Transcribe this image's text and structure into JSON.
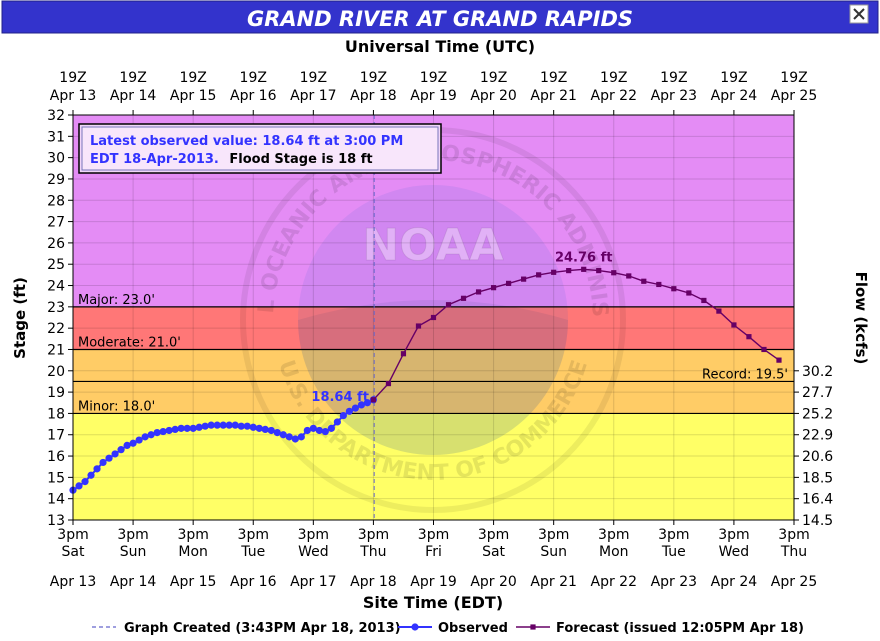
{
  "chart_data": {
    "type": "line",
    "title": "GRAND RIVER AT GRAND RAPIDS",
    "top_axis_label": "Universal Time (UTC)",
    "top_ticks": [
      {
        "line1": "19Z",
        "line2": "Apr 13"
      },
      {
        "line1": "19Z",
        "line2": "Apr 14"
      },
      {
        "line1": "19Z",
        "line2": "Apr 15"
      },
      {
        "line1": "19Z",
        "line2": "Apr 16"
      },
      {
        "line1": "19Z",
        "line2": "Apr 17"
      },
      {
        "line1": "19Z",
        "line2": "Apr 18"
      },
      {
        "line1": "19Z",
        "line2": "Apr 19"
      },
      {
        "line1": "19Z",
        "line2": "Apr 20"
      },
      {
        "line1": "19Z",
        "line2": "Apr 21"
      },
      {
        "line1": "19Z",
        "line2": "Apr 22"
      },
      {
        "line1": "19Z",
        "line2": "Apr 23"
      },
      {
        "line1": "19Z",
        "line2": "Apr 24"
      },
      {
        "line1": "19Z",
        "line2": "Apr 25"
      }
    ],
    "bottom_axis_label": "Site Time (EDT)",
    "bottom_ticks": [
      {
        "line1": "3pm",
        "line2": "Sat",
        "line3": "Apr 13"
      },
      {
        "line1": "3pm",
        "line2": "Sun",
        "line3": "Apr 14"
      },
      {
        "line1": "3pm",
        "line2": "Mon",
        "line3": "Apr 15"
      },
      {
        "line1": "3pm",
        "line2": "Tue",
        "line3": "Apr 16"
      },
      {
        "line1": "3pm",
        "line2": "Wed",
        "line3": "Apr 17"
      },
      {
        "line1": "3pm",
        "line2": "Thu",
        "line3": "Apr 18"
      },
      {
        "line1": "3pm",
        "line2": "Fri",
        "line3": "Apr 19"
      },
      {
        "line1": "3pm",
        "line2": "Sat",
        "line3": "Apr 20"
      },
      {
        "line1": "3pm",
        "line2": "Sun",
        "line3": "Apr 21"
      },
      {
        "line1": "3pm",
        "line2": "Mon",
        "line3": "Apr 22"
      },
      {
        "line1": "3pm",
        "line2": "Tue",
        "line3": "Apr 23"
      },
      {
        "line1": "3pm",
        "line2": "Wed",
        "line3": "Apr 24"
      },
      {
        "line1": "3pm",
        "line2": "Thu",
        "line3": "Apr 25"
      }
    ],
    "ylabel_left": "Stage (ft)",
    "ylim": [
      13,
      32
    ],
    "yticks_left": [
      13,
      14,
      15,
      16,
      17,
      18,
      19,
      20,
      21,
      22,
      23,
      24,
      25,
      26,
      27,
      28,
      29,
      30,
      31,
      32
    ],
    "ylabel_right": "Flow (kcfs)",
    "right_ticks": [
      {
        "stage": 13,
        "label": "14.5"
      },
      {
        "stage": 14,
        "label": "16.4"
      },
      {
        "stage": 15,
        "label": "18.5"
      },
      {
        "stage": 16,
        "label": "20.6"
      },
      {
        "stage": 17,
        "label": "22.9"
      },
      {
        "stage": 18,
        "label": "25.2"
      },
      {
        "stage": 19,
        "label": "27.7"
      },
      {
        "stage": 20,
        "label": "30.2"
      }
    ],
    "xlim_days": [
      0,
      12
    ],
    "bands": [
      {
        "from": 13,
        "to": 18,
        "color": "#ffff66"
      },
      {
        "from": 18,
        "to": 21,
        "color": "#ffcc66"
      },
      {
        "from": 21,
        "to": 23,
        "color": "#ff7777"
      },
      {
        "from": 23,
        "to": 32,
        "color": "#e48cf5"
      }
    ],
    "thresholds": [
      {
        "value": 23.0,
        "label": "Major: 23.0'",
        "side": "left"
      },
      {
        "value": 21.0,
        "label": "Moderate: 21.0'",
        "side": "left"
      },
      {
        "value": 18.0,
        "label": "Minor: 18.0'",
        "side": "left"
      },
      {
        "value": 19.5,
        "label": "Record: 19.5'",
        "side": "right"
      }
    ],
    "created_day": 5.0125,
    "info_box": {
      "observed_text": "Latest observed value: 18.64 ft at 3:00 PM EDT 18-Apr-2013.",
      "flood_text": "Flood Stage is 18 ft",
      "line1": "Latest observed value: 18.64 ft at 3:00 PM",
      "line2_blue": "EDT 18-Apr-2013.",
      "line2_black": "Flood Stage is 18 ft"
    },
    "observed_label": "18.64 ft",
    "crest_label": "24.76 ft",
    "watermark": "NATIONAL OCEANIC AND ATMOSPHERIC ADMINISTRATION",
    "watermark2": "U.S. DEPARTMENT OF COMMERCE",
    "watermark_logo": "NOAA",
    "colors": {
      "observed": "#3333ff",
      "forecast": "#660066",
      "title_bg": "#3333cc",
      "title_fg": "#ffffff",
      "frame": "#000000"
    },
    "series": [
      {
        "name": "Observed",
        "x": [
          0.0,
          0.1,
          0.2,
          0.3,
          0.4,
          0.5,
          0.6,
          0.7,
          0.8,
          0.9,
          1.0,
          1.1,
          1.2,
          1.3,
          1.4,
          1.5,
          1.6,
          1.7,
          1.8,
          1.9,
          2.0,
          2.1,
          2.2,
          2.3,
          2.4,
          2.5,
          2.6,
          2.7,
          2.8,
          2.9,
          3.0,
          3.1,
          3.2,
          3.3,
          3.4,
          3.5,
          3.6,
          3.7,
          3.8,
          3.9,
          4.0,
          4.1,
          4.2,
          4.3,
          4.4,
          4.5,
          4.6,
          4.7,
          4.8,
          4.9,
          5.0
        ],
        "values": [
          14.4,
          14.6,
          14.8,
          15.1,
          15.4,
          15.7,
          15.9,
          16.1,
          16.3,
          16.5,
          16.6,
          16.75,
          16.9,
          17.0,
          17.1,
          17.15,
          17.2,
          17.25,
          17.3,
          17.3,
          17.3,
          17.35,
          17.4,
          17.45,
          17.45,
          17.45,
          17.45,
          17.45,
          17.4,
          17.4,
          17.35,
          17.3,
          17.25,
          17.2,
          17.1,
          17.0,
          16.9,
          16.8,
          16.9,
          17.2,
          17.3,
          17.2,
          17.15,
          17.3,
          17.6,
          17.9,
          18.1,
          18.25,
          18.4,
          18.5,
          18.64
        ]
      },
      {
        "name": "Forecast",
        "x": [
          5.0,
          5.25,
          5.5,
          5.75,
          6.0,
          6.25,
          6.5,
          6.75,
          7.0,
          7.25,
          7.5,
          7.75,
          8.0,
          8.25,
          8.5,
          8.75,
          9.0,
          9.25,
          9.5,
          9.75,
          10.0,
          10.25,
          10.5,
          10.75,
          11.0,
          11.25,
          11.5,
          11.75
        ],
        "values": [
          18.64,
          19.4,
          20.8,
          22.1,
          22.5,
          23.1,
          23.4,
          23.7,
          23.9,
          24.1,
          24.3,
          24.5,
          24.62,
          24.7,
          24.76,
          24.7,
          24.6,
          24.45,
          24.2,
          24.05,
          23.85,
          23.65,
          23.3,
          22.8,
          22.15,
          21.6,
          21.0,
          20.5
        ]
      }
    ],
    "legend": [
      {
        "name": "Graph Created (3:43PM Apr 18, 2013)",
        "style": "dash",
        "color": "#6666cc"
      },
      {
        "name": "Observed",
        "style": "line-dot",
        "color": "#3333ff"
      },
      {
        "name": "Forecast (issued 12:05PM Apr 18)",
        "style": "line-square",
        "color": "#660066"
      }
    ],
    "grid": true,
    "legend_position": "bottom-center"
  }
}
